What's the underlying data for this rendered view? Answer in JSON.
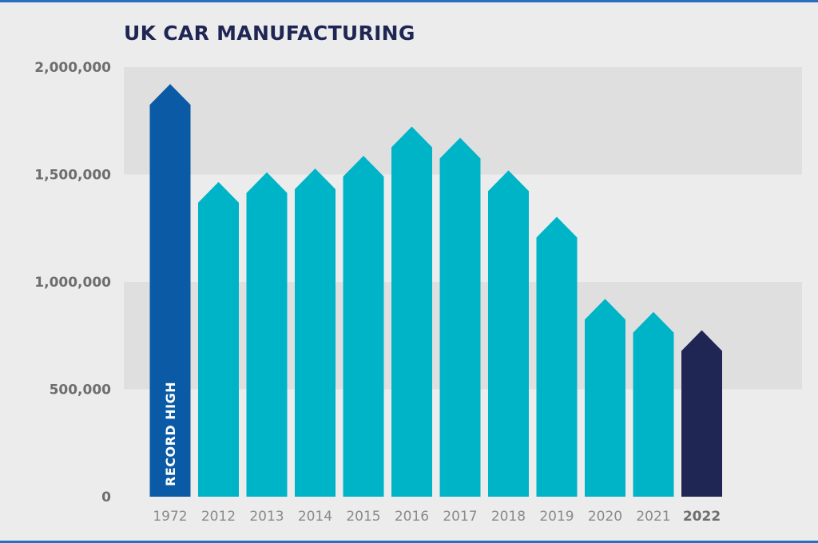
{
  "chart_data": {
    "type": "bar",
    "title": "UK CAR MANUFACTURING",
    "xlabel": "",
    "ylabel": "",
    "categories": [
      "1972",
      "2012",
      "2013",
      "2014",
      "2015",
      "2016",
      "2017",
      "2018",
      "2019",
      "2020",
      "2021",
      "2022"
    ],
    "values": [
      1921000,
      1465000,
      1510000,
      1528000,
      1587000,
      1723000,
      1671000,
      1519000,
      1303000,
      921000,
      860000,
      775000
    ],
    "ylim": [
      0,
      2000000
    ],
    "yticks": [
      0,
      500000,
      1000000,
      1500000,
      2000000
    ],
    "ytick_labels": [
      "0",
      "500,000",
      "1,000,000",
      "1,500,000",
      "2,000,000"
    ],
    "bar_annotation": {
      "category": "1972",
      "text": "RECORD HIGH"
    },
    "emphasized_category": "2022",
    "grid": "alternating horizontal bands",
    "legend": "none",
    "colors": {
      "record": "#0a5aa5",
      "standard": "#00b4c8",
      "latest": "#1f2654",
      "band": "#e0dfe0",
      "background": "#ececec",
      "title": "#1f2654"
    }
  }
}
